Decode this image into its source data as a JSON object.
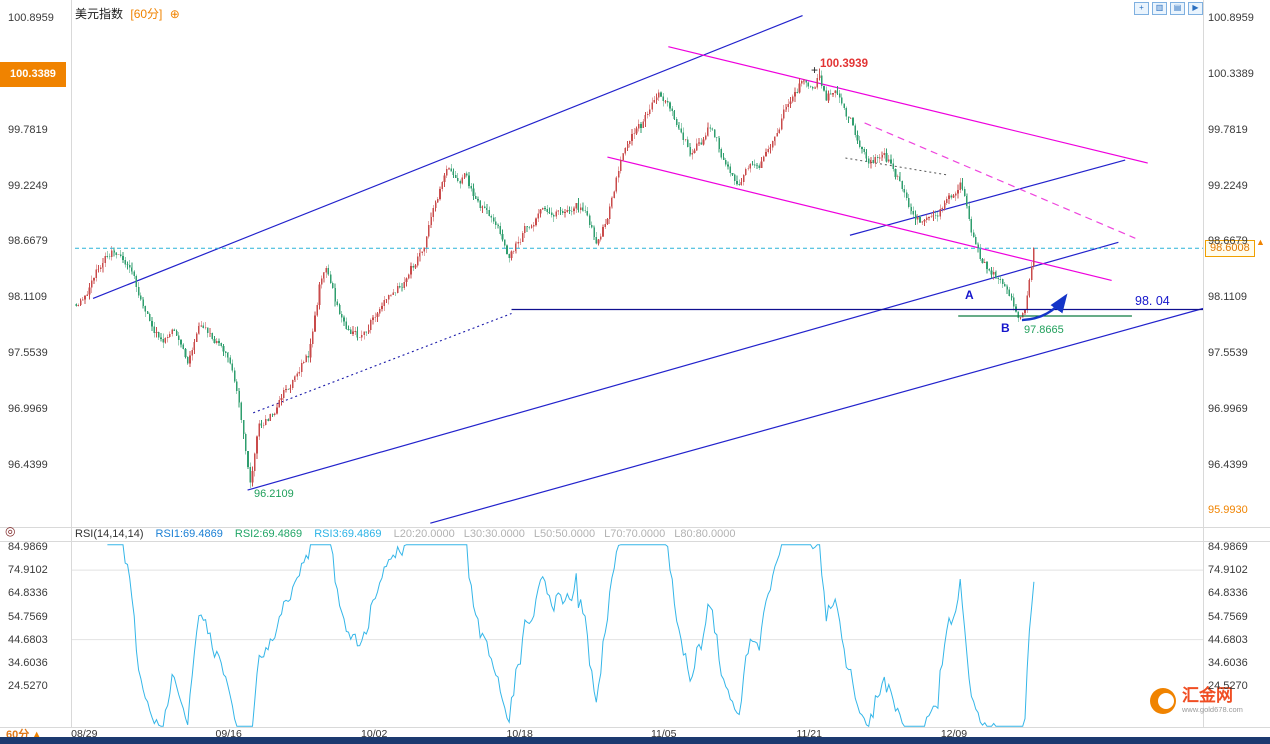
{
  "header": {
    "title": "美元指数",
    "timeframe": "[60分]",
    "add_icon": "⊕"
  },
  "toolbar": {
    "icons": [
      {
        "name": "zoom-in-icon",
        "glyph": "+"
      },
      {
        "name": "candlestick-view-icon",
        "glyph": "▥"
      },
      {
        "name": "line-view-icon",
        "glyph": "▤"
      },
      {
        "name": "scroll-right-icon",
        "glyph": "▶"
      }
    ]
  },
  "main_axis": {
    "labels": [
      "100.8959",
      "100.3389",
      "99.7819",
      "99.2249",
      "98.6679",
      "98.1109",
      "97.5539",
      "96.9969",
      "96.4399"
    ],
    "highlight_index": 1,
    "right_extra": "95.9930"
  },
  "price_tag": "98.6008",
  "right_axis": {
    "up_arrow": "▲"
  },
  "annotations": {
    "peak": "100.3939",
    "marker": "+",
    "low": "96.2109",
    "recent_low": "97.8665",
    "support": "98. 04",
    "point_a": "A",
    "point_b": "B"
  },
  "rsi": {
    "name": "RSI(14,14,14)",
    "rsi1": "RSI1:69.4869",
    "rsi2": "RSI2:69.4869",
    "rsi3": "RSI3:69.4869",
    "levels": [
      "L20:20.0000",
      "L30:30.0000",
      "L50:50.0000",
      "L70:70.0000",
      "L80:80.0000"
    ]
  },
  "rsi_axis": {
    "labels": [
      "84.9869",
      "74.9102",
      "64.8336",
      "54.7569",
      "44.6803",
      "34.6036",
      "24.5270"
    ]
  },
  "footer": {
    "timeframe": "60分",
    "arrow": "▲"
  },
  "left_rail": {
    "crosshair_icon": "◎"
  },
  "logo": {
    "text": "汇金网",
    "url": "www.gold678.com"
  },
  "colors": {
    "candle_up": "#c94b4b",
    "candle_down": "#2f9e6e",
    "rsi_line": "#35b6e8",
    "accent_orange": "#f08300",
    "bottom_bar": "#1c3a70",
    "trend_blue": "#2222cc",
    "trend_magenta": "#ee00dd"
  },
  "chart_data": {
    "type": "candlestick",
    "sub_chart": "rsi",
    "instrument": "美元指数",
    "interval": "60分",
    "seed": 20,
    "candle_count": 430,
    "ylim": [
      95.84,
      100.98
    ],
    "y_ticks": [
      100.8959,
      100.3389,
      99.7819,
      99.2249,
      98.6679,
      98.1109,
      97.5539,
      96.9969,
      96.4399,
      95.993
    ],
    "x_ticks": [
      {
        "label": "08/29",
        "f": 0.009
      },
      {
        "label": "09/16",
        "f": 0.137
      },
      {
        "label": "10/02",
        "f": 0.266
      },
      {
        "label": "10/18",
        "f": 0.395
      },
      {
        "label": "11/05",
        "f": 0.523
      },
      {
        "label": "11/21",
        "f": 0.652
      },
      {
        "label": "12/09",
        "f": 0.78
      }
    ],
    "key_prices": {
      "high": 100.3939,
      "low": 96.2109,
      "recent_low": 97.8665,
      "last": 98.6008,
      "support": 98.04,
      "rsi1": 69.4869,
      "rsi2": 69.4869,
      "rsi3": 69.4869
    },
    "path_anchors": [
      [
        0.0,
        98.0
      ],
      [
        0.016,
        98.24
      ],
      [
        0.031,
        98.55
      ],
      [
        0.047,
        98.58
      ],
      [
        0.063,
        98.19
      ],
      [
        0.078,
        97.9
      ],
      [
        0.091,
        97.62
      ],
      [
        0.104,
        97.8
      ],
      [
        0.116,
        97.5
      ],
      [
        0.13,
        97.8
      ],
      [
        0.146,
        97.7
      ],
      [
        0.162,
        97.4
      ],
      [
        0.172,
        96.92
      ],
      [
        0.182,
        96.3
      ],
      [
        0.191,
        96.8
      ],
      [
        0.203,
        96.92
      ],
      [
        0.216,
        97.14
      ],
      [
        0.229,
        97.32
      ],
      [
        0.243,
        97.55
      ],
      [
        0.255,
        98.28
      ],
      [
        0.262,
        98.45
      ],
      [
        0.272,
        98.05
      ],
      [
        0.283,
        97.82
      ],
      [
        0.294,
        97.7
      ],
      [
        0.304,
        97.82
      ],
      [
        0.315,
        98.0
      ],
      [
        0.328,
        98.1
      ],
      [
        0.341,
        98.26
      ],
      [
        0.353,
        98.45
      ],
      [
        0.365,
        98.68
      ],
      [
        0.376,
        99.05
      ],
      [
        0.388,
        99.42
      ],
      [
        0.397,
        99.22
      ],
      [
        0.407,
        99.3
      ],
      [
        0.419,
        99.08
      ],
      [
        0.43,
        98.92
      ],
      [
        0.442,
        98.76
      ],
      [
        0.452,
        98.45
      ],
      [
        0.463,
        98.68
      ],
      [
        0.474,
        98.85
      ],
      [
        0.487,
        98.95
      ],
      [
        0.498,
        98.88
      ],
      [
        0.509,
        99.0
      ],
      [
        0.521,
        99.05
      ],
      [
        0.532,
        98.92
      ],
      [
        0.544,
        98.66
      ],
      [
        0.554,
        98.88
      ],
      [
        0.566,
        99.4
      ],
      [
        0.577,
        99.7
      ],
      [
        0.589,
        99.8
      ],
      [
        0.599,
        99.95
      ],
      [
        0.609,
        100.16
      ],
      [
        0.621,
        99.95
      ],
      [
        0.631,
        99.78
      ],
      [
        0.642,
        99.58
      ],
      [
        0.652,
        99.64
      ],
      [
        0.663,
        99.84
      ],
      [
        0.673,
        99.58
      ],
      [
        0.683,
        99.4
      ],
      [
        0.694,
        99.24
      ],
      [
        0.704,
        99.4
      ],
      [
        0.716,
        99.45
      ],
      [
        0.726,
        99.6
      ],
      [
        0.737,
        99.9
      ],
      [
        0.747,
        100.14
      ],
      [
        0.757,
        100.24
      ],
      [
        0.768,
        100.18
      ],
      [
        0.776,
        100.32
      ],
      [
        0.783,
        100.12
      ],
      [
        0.791,
        100.22
      ],
      [
        0.799,
        100.02
      ],
      [
        0.809,
        99.86
      ],
      [
        0.82,
        99.58
      ],
      [
        0.83,
        99.48
      ],
      [
        0.841,
        99.55
      ],
      [
        0.851,
        99.42
      ],
      [
        0.862,
        99.22
      ],
      [
        0.872,
        98.98
      ],
      [
        0.882,
        98.84
      ],
      [
        0.893,
        98.95
      ],
      [
        0.903,
        99.0
      ],
      [
        0.914,
        99.14
      ],
      [
        0.924,
        99.24
      ],
      [
        0.934,
        98.78
      ],
      [
        0.945,
        98.48
      ],
      [
        0.955,
        98.34
      ],
      [
        0.966,
        98.28
      ],
      [
        0.976,
        98.12
      ],
      [
        0.984,
        97.9
      ],
      [
        0.991,
        98.02
      ],
      [
        1.0,
        98.58
      ]
    ],
    "lines": [
      {
        "x1": 0.016,
        "p1": 98.1,
        "x2": 0.645,
        "p2": 100.92,
        "color": "#2222cc",
        "w": 1.2
      },
      {
        "x1": 0.153,
        "p1": 96.19,
        "x2": 0.925,
        "p2": 98.66,
        "color": "#2222cc",
        "w": 1.2
      },
      {
        "x1": 0.315,
        "p1": 95.86,
        "x2": 1.0,
        "p2": 98.0,
        "color": "#2222cc",
        "w": 1.2
      },
      {
        "x1": 0.687,
        "p1": 98.73,
        "x2": 0.931,
        "p2": 99.48,
        "color": "#2222cc",
        "w": 1.2
      },
      {
        "x1": 0.158,
        "p1": 96.96,
        "x2": 0.387,
        "p2": 97.95,
        "color": "#1a1aaa",
        "w": 1.1,
        "dash": "2,3"
      },
      {
        "x1": 0.526,
        "p1": 100.61,
        "x2": 0.951,
        "p2": 99.45,
        "color": "#ee00dd",
        "w": 1.2
      },
      {
        "x1": 0.472,
        "p1": 99.51,
        "x2": 0.919,
        "p2": 98.28,
        "color": "#ee00dd",
        "w": 1.2
      },
      {
        "x1": 0.7,
        "p1": 99.85,
        "x2": 0.94,
        "p2": 98.7,
        "color": "#ee44dd",
        "w": 1.2,
        "dash": "7,5"
      },
      {
        "x1": 0.683,
        "p1": 99.5,
        "x2": 0.774,
        "p2": 99.33,
        "color": "#555555",
        "w": 1,
        "dash": "2,3"
      },
      {
        "x1": 0.387,
        "p1": 97.99,
        "x2": 1.0,
        "p2": 97.99,
        "color": "#101090",
        "w": 1.2,
        "over": true
      },
      {
        "x1": 0.0,
        "p1": 98.6008,
        "x2": 1.0,
        "p2": 98.6008,
        "color": "#2ab4d8",
        "w": 1,
        "dash": "4,3",
        "over": true
      },
      {
        "x1": 0.783,
        "p1": 97.925,
        "x2": 0.937,
        "p2": 97.925,
        "color": "#0c7a40",
        "w": 1.3,
        "over": true
      }
    ],
    "arrow": {
      "x1": 0.8395,
      "p1": 97.885,
      "x2": 0.878,
      "p2": 98.12,
      "color": "#1535c8"
    },
    "rsi_gridlines": [
      74.9102,
      44.6803
    ]
  }
}
